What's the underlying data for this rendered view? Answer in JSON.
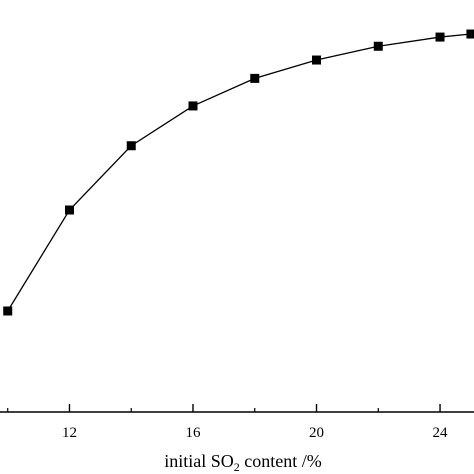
{
  "chart_data": {
    "type": "line",
    "xlabel": {
      "before": "initial SO",
      "subscript": "2",
      "after": " content /%"
    },
    "x_ticks": [
      "12",
      "16",
      "20",
      "24"
    ],
    "x": [
      10,
      12,
      14,
      16,
      18,
      20,
      22,
      24,
      25
    ],
    "series": [
      {
        "values": [
          0.33,
          0.66,
          0.87,
          1.0,
          1.09,
          1.15,
          1.195,
          1.225,
          1.235
        ]
      }
    ],
    "xlim": [
      9.75,
      25.1
    ],
    "ylim": [
      0.0,
      1.32
    ],
    "grid": false,
    "marker": "square",
    "line_color": "#000000",
    "marker_color": "#000000"
  }
}
